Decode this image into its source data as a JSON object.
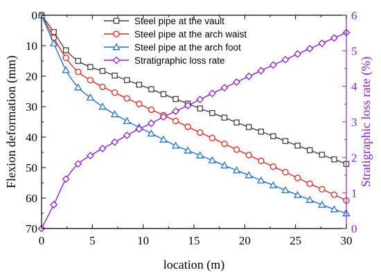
{
  "chart_data": {
    "type": "line",
    "xlabel": "location (m)",
    "ylabel_left": "Flexion deformation (mm)",
    "ylabel_right": "Stratigraphic loss rate (%)",
    "xlim": [
      0,
      30
    ],
    "ylim_left": [
      70,
      0
    ],
    "ylim_right": [
      0,
      6
    ],
    "x_ticks": [
      0,
      5,
      10,
      15,
      20,
      25,
      30
    ],
    "y_left_ticks": [
      0,
      10,
      20,
      30,
      40,
      50,
      60,
      70
    ],
    "y_right_ticks": [
      0,
      1,
      2,
      3,
      4,
      5,
      6
    ],
    "legend_position": "top-center",
    "x": [
      0,
      1.2,
      2.4,
      3.6,
      4.8,
      6,
      7.2,
      8.4,
      9.6,
      10.8,
      12,
      13.2,
      14.4,
      15.6,
      16.8,
      18,
      19.2,
      20.4,
      21.6,
      22.8,
      24,
      25.2,
      26.4,
      27.6,
      28.8,
      30
    ],
    "series": [
      {
        "name": "Steel pipe at the vault",
        "axis": "left",
        "color": "#404040",
        "marker": "square",
        "values": [
          0,
          5.5,
          11.5,
          15,
          17,
          18.3,
          19.8,
          21.3,
          22.8,
          24.3,
          25.9,
          27.5,
          29,
          30.6,
          32.1,
          33.6,
          35.2,
          36.7,
          38.2,
          39.7,
          41.3,
          42.8,
          44.3,
          45.8,
          47.3,
          48.8
        ]
      },
      {
        "name": "Steel pipe at the arch waist",
        "axis": "left",
        "color": "#e8251e",
        "marker": "circle",
        "values": [
          0,
          7.4,
          14,
          18.6,
          21.3,
          23.5,
          25.4,
          27.3,
          29.1,
          31,
          32.8,
          34.7,
          36.6,
          38.5,
          40.3,
          42.2,
          44.1,
          45.9,
          47.8,
          49.7,
          51.5,
          53.4,
          55.3,
          57.1,
          58.9,
          60.8
        ]
      },
      {
        "name": "Steel pipe at the arch foot",
        "axis": "left",
        "color": "#1a70d8",
        "marker": "triangle",
        "values": [
          0,
          9.2,
          18,
          23.7,
          27,
          30,
          32.5,
          34.7,
          36.8,
          38.8,
          40.8,
          42.8,
          44.4,
          46,
          47.6,
          49.3,
          50.9,
          52.5,
          54.2,
          55.8,
          57.4,
          59,
          60.6,
          62.2,
          63.7,
          65
        ]
      },
      {
        "name": "Stratigraphic loss rate",
        "axis": "right",
        "color": "#8e1fd6",
        "marker": "diamond",
        "values": [
          0,
          0.67,
          1.39,
          1.82,
          2.05,
          2.25,
          2.43,
          2.62,
          2.8,
          2.96,
          3.14,
          3.3,
          3.46,
          3.63,
          3.8,
          3.96,
          4.12,
          4.28,
          4.44,
          4.6,
          4.75,
          4.91,
          5.06,
          5.21,
          5.36,
          5.51
        ]
      }
    ]
  }
}
